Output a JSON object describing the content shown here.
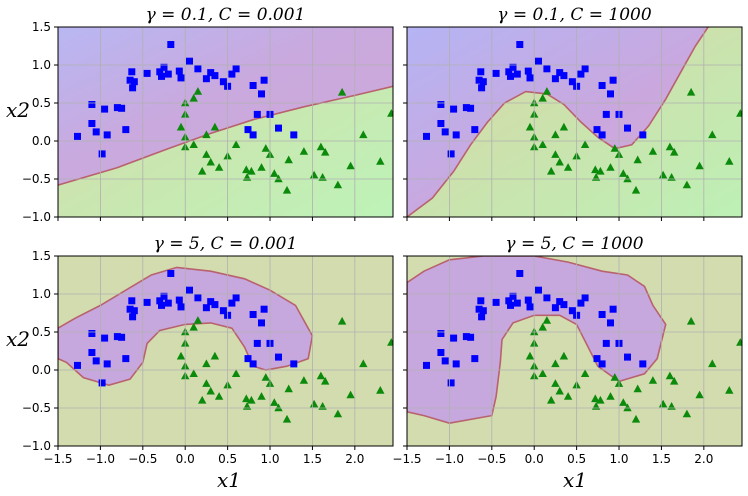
{
  "chart_data": [
    {
      "type": "scatter",
      "title": "γ = 0.1, C = 0.001",
      "xlabel": "",
      "ylabel": "x2",
      "xlim": [
        -1.5,
        2.45
      ],
      "ylim": [
        -1.0,
        1.5
      ],
      "xticks": [
        "−1.5",
        "−1.0",
        "−0.5",
        "0.0",
        "0.5",
        "1.0",
        "1.5",
        "2.0"
      ],
      "yticks": [
        "−1.0",
        "−0.5",
        "0.0",
        "0.5",
        "1.0",
        "1.5"
      ],
      "show_xticklabels": false,
      "show_yticklabels": true,
      "grid": true,
      "boundary": [
        [
          -1.5,
          -0.58
        ],
        [
          -0.8,
          -0.35
        ],
        [
          -0.2,
          -0.1
        ],
        [
          0.3,
          0.1
        ],
        [
          0.8,
          0.28
        ],
        [
          1.4,
          0.45
        ],
        [
          2.0,
          0.6
        ],
        [
          2.45,
          0.72
        ]
      ]
    },
    {
      "type": "scatter",
      "title": "γ = 0.1, C = 1000",
      "xlabel": "",
      "ylabel": "",
      "xlim": [
        -1.5,
        2.45
      ],
      "ylim": [
        -1.0,
        1.5
      ],
      "xticks": [
        "−1.5",
        "−1.0",
        "−0.5",
        "0.0",
        "0.5",
        "1.0",
        "1.5",
        "2.0"
      ],
      "yticks": [
        "−1.0",
        "−0.5",
        "0.0",
        "0.5",
        "1.0",
        "1.5"
      ],
      "show_xticklabels": false,
      "show_yticklabels": false,
      "grid": true,
      "boundary": [
        [
          -1.5,
          -1.0
        ],
        [
          -1.2,
          -0.75
        ],
        [
          -0.95,
          -0.4
        ],
        [
          -0.75,
          -0.05
        ],
        [
          -0.55,
          0.25
        ],
        [
          -0.35,
          0.5
        ],
        [
          -0.1,
          0.65
        ],
        [
          0.15,
          0.62
        ],
        [
          0.35,
          0.48
        ],
        [
          0.55,
          0.25
        ],
        [
          0.75,
          0.05
        ],
        [
          0.95,
          -0.1
        ],
        [
          1.15,
          -0.05
        ],
        [
          1.35,
          0.2
        ],
        [
          1.55,
          0.55
        ],
        [
          1.75,
          0.95
        ],
        [
          1.9,
          1.25
        ],
        [
          2.05,
          1.5
        ]
      ]
    },
    {
      "type": "scatter",
      "title": "γ = 5, C = 0.001",
      "xlabel": "x1",
      "ylabel": "x2",
      "xlim": [
        -1.5,
        2.45
      ],
      "ylim": [
        -1.0,
        1.5
      ],
      "xticks": [
        "−1.5",
        "−1.0",
        "−0.5",
        "0.0",
        "0.5",
        "1.0",
        "1.5",
        "2.0"
      ],
      "yticks": [
        "−1.0",
        "−0.5",
        "0.0",
        "0.5",
        "1.0",
        "1.5"
      ],
      "show_xticklabels": true,
      "show_yticklabels": true,
      "grid": true,
      "region": [
        [
          -1.5,
          0.55
        ],
        [
          -1.3,
          0.68
        ],
        [
          -1.0,
          0.85
        ],
        [
          -0.7,
          1.05
        ],
        [
          -0.4,
          1.25
        ],
        [
          -0.1,
          1.35
        ],
        [
          0.3,
          1.3
        ],
        [
          0.7,
          1.2
        ],
        [
          1.0,
          1.05
        ],
        [
          1.3,
          0.85
        ],
        [
          1.5,
          0.45
        ],
        [
          1.45,
          0.15
        ],
        [
          1.2,
          0.05
        ],
        [
          0.95,
          0.0
        ],
        [
          0.8,
          0.05
        ],
        [
          0.7,
          0.3
        ],
        [
          0.55,
          0.55
        ],
        [
          0.3,
          0.62
        ],
        [
          0.0,
          0.6
        ],
        [
          -0.3,
          0.52
        ],
        [
          -0.45,
          0.35
        ],
        [
          -0.5,
          0.1
        ],
        [
          -0.65,
          -0.12
        ],
        [
          -0.9,
          -0.2
        ],
        [
          -1.2,
          -0.1
        ],
        [
          -1.4,
          0.1
        ],
        [
          -1.5,
          0.15
        ]
      ]
    },
    {
      "type": "scatter",
      "title": "γ = 5, C = 1000",
      "xlabel": "x1",
      "ylabel": "",
      "xlim": [
        -1.5,
        2.45
      ],
      "ylim": [
        -1.0,
        1.5
      ],
      "xticks": [
        "−1.5",
        "−1.0",
        "−0.5",
        "0.0",
        "0.5",
        "1.0",
        "1.5",
        "2.0"
      ],
      "yticks": [
        "−1.0",
        "−0.5",
        "0.0",
        "0.5",
        "1.0",
        "1.5"
      ],
      "show_xticklabels": true,
      "show_yticklabels": false,
      "grid": true,
      "region": [
        [
          -1.5,
          1.15
        ],
        [
          -1.3,
          1.3
        ],
        [
          -1.0,
          1.45
        ],
        [
          -0.6,
          1.5
        ],
        [
          0.0,
          1.5
        ],
        [
          0.4,
          1.42
        ],
        [
          0.8,
          1.3
        ],
        [
          1.1,
          1.25
        ],
        [
          1.3,
          1.1
        ],
        [
          1.4,
          0.85
        ],
        [
          1.55,
          0.6
        ],
        [
          1.45,
          0.15
        ],
        [
          1.3,
          -0.05
        ],
        [
          1.0,
          -0.15
        ],
        [
          0.75,
          0.05
        ],
        [
          0.5,
          0.6
        ],
        [
          0.3,
          0.72
        ],
        [
          0.0,
          0.72
        ],
        [
          -0.25,
          0.62
        ],
        [
          -0.38,
          0.4
        ],
        [
          -0.4,
          0.1
        ],
        [
          -0.45,
          -0.35
        ],
        [
          -0.5,
          -0.6
        ],
        [
          -1.0,
          -0.7
        ],
        [
          -1.3,
          -0.6
        ],
        [
          -1.5,
          -0.55
        ]
      ]
    }
  ],
  "points": {
    "squares": [
      [
        -1.27,
        0.06
      ],
      [
        -1.1,
        0.48
      ],
      [
        -1.1,
        0.23
      ],
      [
        -1.05,
        0.12
      ],
      [
        -0.98,
        -0.17
      ],
      [
        -0.95,
        0.42
      ],
      [
        -0.92,
        0.08
      ],
      [
        -0.8,
        0.44
      ],
      [
        -0.75,
        0.43
      ],
      [
        -0.7,
        0.15
      ],
      [
        -0.65,
        0.8
      ],
      [
        -0.63,
        0.91
      ],
      [
        -0.62,
        0.7
      ],
      [
        -0.6,
        0.78
      ],
      [
        -0.45,
        0.89
      ],
      [
        -0.3,
        0.91
      ],
      [
        -0.28,
        0.85
      ],
      [
        -0.25,
        0.97
      ],
      [
        -0.2,
        0.88
      ],
      [
        -0.17,
        1.27
      ],
      [
        -0.07,
        0.92
      ],
      [
        -0.05,
        0.83
      ],
      [
        0.05,
        1.05
      ],
      [
        0.15,
        0.95
      ],
      [
        0.25,
        0.82
      ],
      [
        0.3,
        0.9
      ],
      [
        0.35,
        0.86
      ],
      [
        0.45,
        0.78
      ],
      [
        0.5,
        0.72
      ],
      [
        0.55,
        0.88
      ],
      [
        0.6,
        0.95
      ],
      [
        0.8,
        0.73
      ],
      [
        0.85,
        0.35
      ],
      [
        0.9,
        0.62
      ],
      [
        0.93,
        0.8
      ],
      [
        0.8,
        0.08
      ],
      [
        0.74,
        0.15
      ],
      [
        1.0,
        0.35
      ],
      [
        1.1,
        0.17
      ],
      [
        1.28,
        0.08
      ]
    ],
    "triangles": [
      [
        0.0,
        0.5
      ],
      [
        0.1,
        0.56
      ],
      [
        0.0,
        0.35
      ],
      [
        0.15,
        0.65
      ],
      [
        -0.05,
        0.18
      ],
      [
        0.0,
        -0.08
      ],
      [
        0.1,
        -0.05
      ],
      [
        0.25,
        0.08
      ],
      [
        0.35,
        0.18
      ],
      [
        0.25,
        -0.18
      ],
      [
        0.3,
        -0.28
      ],
      [
        0.4,
        -0.35
      ],
      [
        0.5,
        -0.2
      ],
      [
        0.6,
        -0.05
      ],
      [
        0.72,
        -0.38
      ],
      [
        0.73,
        -0.48
      ],
      [
        0.78,
        -0.4
      ],
      [
        0.9,
        -0.35
      ],
      [
        0.95,
        -0.1
      ],
      [
        1.0,
        -0.18
      ],
      [
        1.05,
        -0.43
      ],
      [
        1.1,
        -0.5
      ],
      [
        1.2,
        -0.65
      ],
      [
        1.22,
        -0.25
      ],
      [
        1.4,
        -0.14
      ],
      [
        1.52,
        -0.45
      ],
      [
        1.6,
        -0.08
      ],
      [
        1.62,
        -0.48
      ],
      [
        1.65,
        -0.15
      ],
      [
        1.85,
        0.64
      ],
      [
        1.95,
        -0.33
      ],
      [
        2.1,
        0.08
      ],
      [
        2.3,
        -0.27
      ],
      [
        2.43,
        0.36
      ],
      [
        1.8,
        -0.58
      ],
      [
        0.0,
        0.05
      ],
      [
        0.2,
        -0.4
      ]
    ]
  },
  "colors": {
    "square_color": "#0000ff",
    "triangle_color": "#0b8a0b",
    "purple_region": "#c6a8de",
    "green_region": "#d3dcae",
    "boundary_color": "#b8626e"
  },
  "panel_titles": [
    "γ = 0.1, C = 0.001",
    "γ = 0.1, C = 1000",
    "γ = 5, C = 0.001",
    "γ = 5, C = 1000"
  ]
}
